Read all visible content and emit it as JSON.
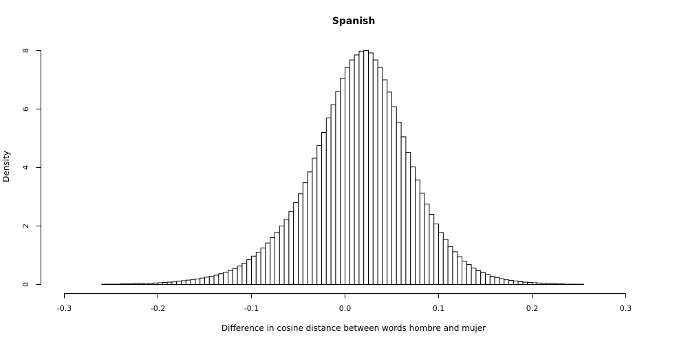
{
  "chart_data": {
    "type": "bar",
    "title": "Spanish",
    "xlabel": "Difference in cosine distance between words hombre and mujer",
    "ylabel": "Density",
    "xlim": [
      -0.3,
      0.32
    ],
    "ylim": [
      0,
      8
    ],
    "grid": false,
    "x_ticks": [
      -0.3,
      -0.2,
      -0.1,
      0.0,
      0.1,
      0.2,
      0.3
    ],
    "x_tick_labels": [
      "-0.3",
      "-0.2",
      "-0.1",
      "0.0",
      "0.1",
      "0.2",
      "0.3"
    ],
    "y_ticks": [
      0,
      2,
      4,
      6,
      8
    ],
    "y_tick_labels": [
      "0",
      "2",
      "4",
      "6",
      "8"
    ],
    "bin_width": 0.005,
    "bin_start": -0.3,
    "density": [
      0.0,
      0.0,
      0.0,
      0.0,
      0.0,
      0.0,
      0.0,
      0.0,
      0.01,
      0.01,
      0.01,
      0.01,
      0.02,
      0.02,
      0.02,
      0.03,
      0.03,
      0.04,
      0.04,
      0.05,
      0.06,
      0.07,
      0.08,
      0.09,
      0.11,
      0.13,
      0.15,
      0.17,
      0.19,
      0.22,
      0.25,
      0.28,
      0.32,
      0.37,
      0.42,
      0.48,
      0.55,
      0.63,
      0.73,
      0.85,
      0.97,
      1.1,
      1.25,
      1.42,
      1.6,
      1.78,
      2.0,
      2.23,
      2.5,
      2.8,
      3.1,
      3.48,
      3.85,
      4.32,
      4.75,
      5.2,
      5.7,
      6.15,
      6.6,
      7.05,
      7.42,
      7.68,
      7.85,
      7.98,
      8.0,
      7.92,
      7.68,
      7.42,
      7.0,
      6.58,
      6.08,
      5.55,
      5.05,
      4.52,
      4.02,
      3.57,
      3.12,
      2.75,
      2.4,
      2.07,
      1.78,
      1.54,
      1.3,
      1.12,
      0.95,
      0.8,
      0.68,
      0.56,
      0.47,
      0.4,
      0.34,
      0.28,
      0.24,
      0.2,
      0.16,
      0.14,
      0.12,
      0.1,
      0.08,
      0.07,
      0.06,
      0.05,
      0.04,
      0.03,
      0.03,
      0.02,
      0.02,
      0.01,
      0.01,
      0.01,
      0.01,
      0.0,
      0.0,
      0.0,
      0.0,
      0.0,
      0.0,
      0.0,
      0.0,
      0.0,
      0.0,
      0.0,
      0.0,
      0.0
    ]
  }
}
